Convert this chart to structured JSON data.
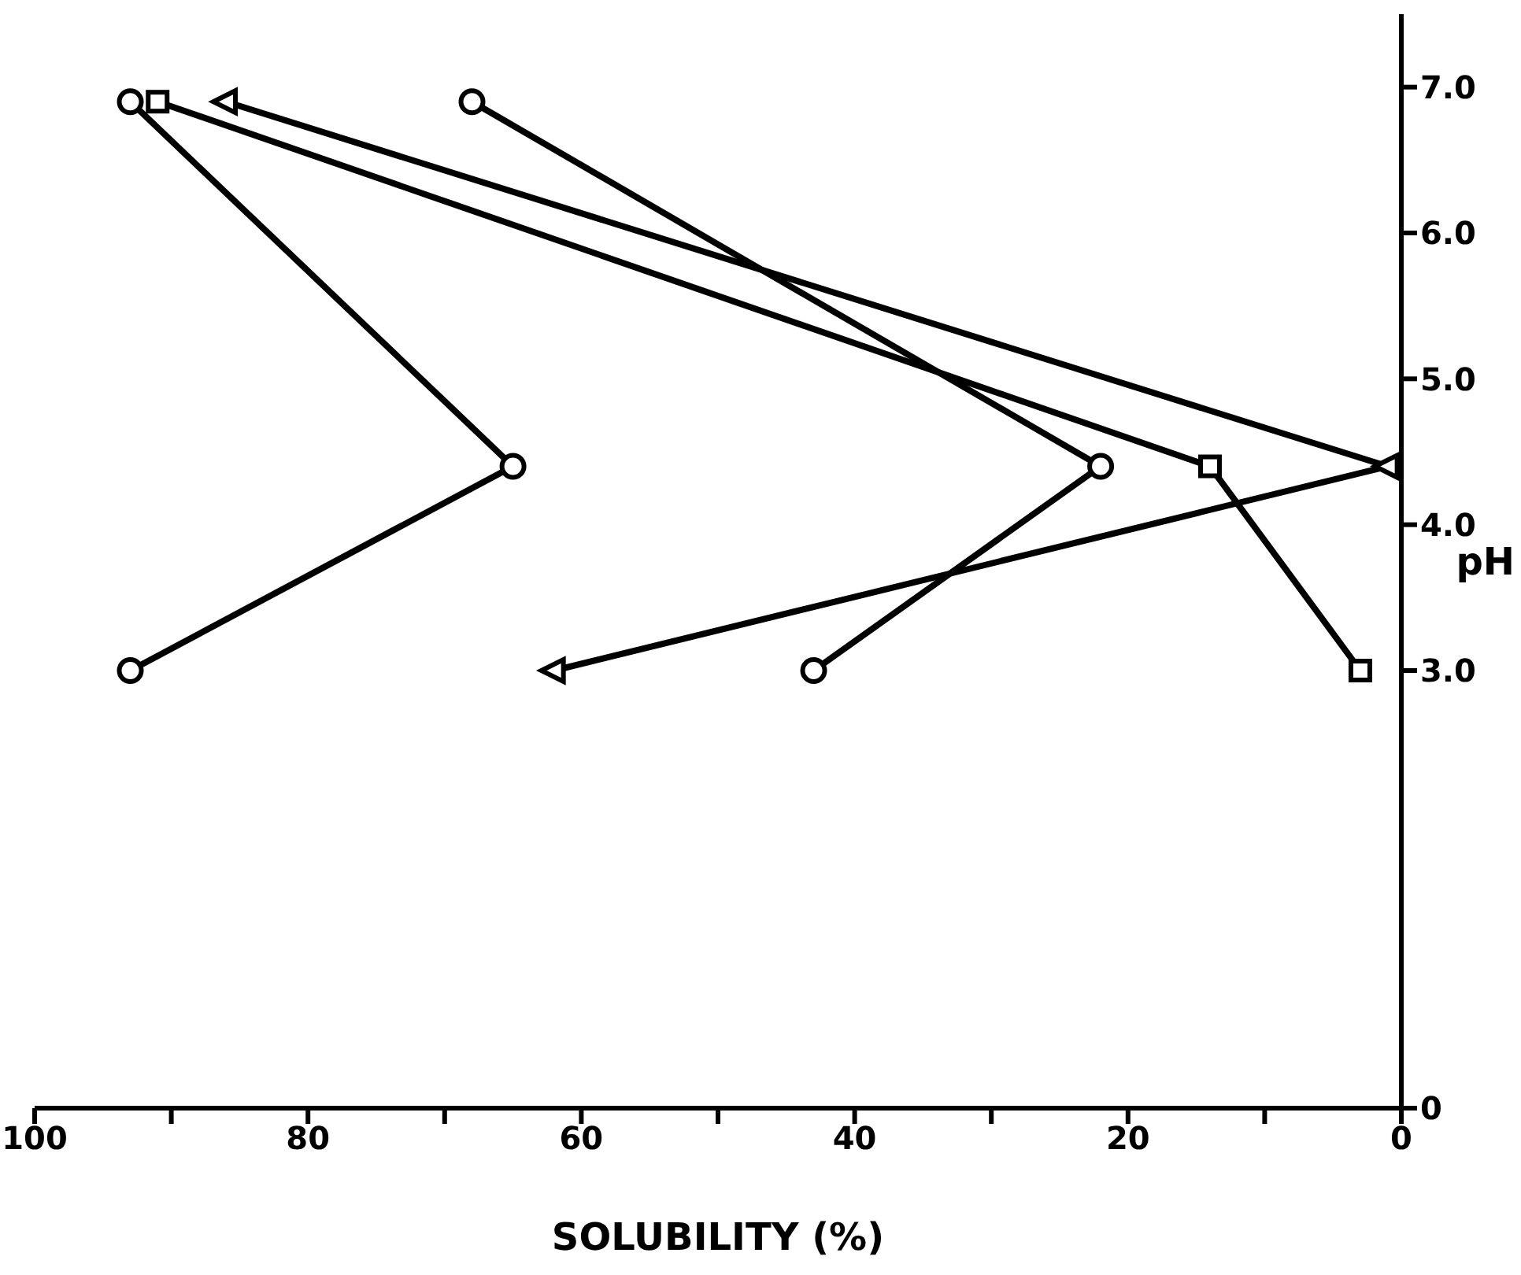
{
  "chart_data": {
    "type": "line",
    "xlabel": "SOLUBILITY (%)",
    "ylabel": "pH",
    "xlim": [
      100,
      0
    ],
    "xticks": [
      100,
      {
        "value": 90,
        "label": null
      },
      80,
      {
        "value": 70,
        "label": null
      },
      60,
      {
        "value": 50,
        "label": null
      },
      40,
      {
        "value": 30,
        "label": null
      },
      20,
      {
        "value": 10,
        "label": null
      },
      0
    ],
    "ylim": [
      0,
      7.5
    ],
    "yticks": [
      0,
      {
        "value": 3,
        "label": "3.0"
      },
      {
        "value": 4,
        "label": "4.0"
      },
      {
        "value": 5,
        "label": "5.0"
      },
      {
        "value": 6,
        "label": "6.0"
      },
      {
        "value": 7,
        "label": "7.0"
      }
    ],
    "series": [
      {
        "color": "#000000",
        "marker": "circle",
        "x": [
          93,
          65,
          93
        ],
        "values": [
          3.0,
          4.4,
          6.9
        ]
      },
      {
        "color": "#000000",
        "marker": "square",
        "x": [
          3,
          14,
          91
        ],
        "values": [
          3.0,
          4.4,
          6.9
        ]
      },
      {
        "color": "#000000",
        "marker": "triangle",
        "x": [
          62,
          1,
          86
        ],
        "values": [
          3.0,
          4.4,
          6.9
        ]
      },
      {
        "color": "#000000",
        "marker": "circle",
        "x": [
          43,
          22,
          68
        ],
        "values": [
          3.0,
          4.4,
          6.9
        ]
      }
    ]
  }
}
